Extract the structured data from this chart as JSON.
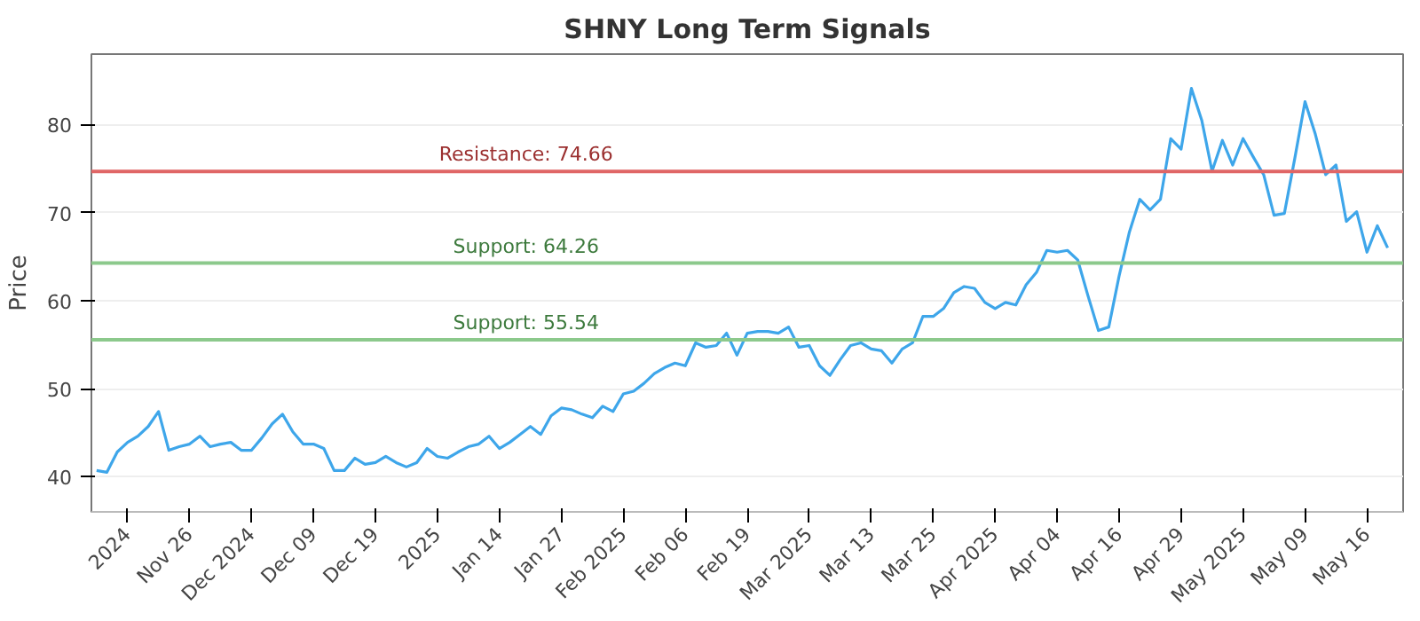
{
  "chart_data": {
    "type": "line",
    "title": "SHNY Long Term Signals",
    "ylabel": "Price",
    "categories": [
      null,
      null,
      null,
      "2024",
      null,
      null,
      null,
      null,
      null,
      "Nov 26",
      null,
      null,
      null,
      null,
      null,
      "Dec 2024",
      null,
      null,
      null,
      null,
      null,
      "Dec 09",
      null,
      null,
      null,
      null,
      null,
      "Dec 19",
      null,
      null,
      null,
      null,
      null,
      "2025",
      null,
      null,
      null,
      null,
      null,
      "Jan 14",
      null,
      null,
      null,
      null,
      null,
      "Jan 27",
      null,
      null,
      null,
      null,
      null,
      "Feb 2025",
      null,
      null,
      null,
      null,
      null,
      "Feb 06",
      null,
      null,
      null,
      null,
      null,
      "Feb 19",
      null,
      null,
      null,
      null,
      null,
      "Mar 2025",
      null,
      null,
      null,
      null,
      null,
      "Mar 13",
      null,
      null,
      null,
      null,
      null,
      "Mar 25",
      null,
      null,
      null,
      null,
      null,
      "Apr 2025",
      null,
      null,
      null,
      null,
      null,
      "Apr 04",
      null,
      null,
      null,
      null,
      null,
      "Apr 16",
      null,
      null,
      null,
      null,
      null,
      "Apr 29",
      null,
      null,
      null,
      null,
      null,
      "May 2025",
      null,
      null,
      null,
      null,
      null,
      "May 09",
      null,
      null,
      null,
      null,
      null,
      "May 16",
      null,
      null
    ],
    "series": [
      {
        "color": "#3ea6ea",
        "values": [
          40.7,
          40.5,
          42.8,
          43.9,
          44.6,
          45.7,
          47.4,
          43.0,
          43.4,
          43.7,
          44.6,
          43.4,
          43.7,
          43.9,
          43.0,
          43.0,
          44.4,
          46.0,
          47.1,
          45.1,
          43.7,
          43.7,
          43.2,
          40.7,
          40.7,
          42.1,
          41.4,
          41.6,
          42.3,
          41.6,
          41.1,
          41.6,
          43.2,
          42.3,
          42.1,
          42.8,
          43.4,
          43.7,
          44.6,
          43.2,
          43.9,
          44.8,
          45.7,
          44.8,
          46.9,
          47.8,
          47.6,
          47.1,
          46.7,
          48.0,
          47.4,
          49.4,
          49.7,
          50.6,
          51.7,
          52.4,
          52.9,
          52.6,
          55.2,
          54.7,
          54.9,
          56.3,
          53.8,
          56.3,
          56.5,
          56.5,
          56.3,
          57.0,
          54.7,
          54.9,
          52.6,
          51.5,
          53.3,
          54.9,
          55.2,
          54.5,
          54.3,
          52.9,
          54.5,
          55.2,
          58.2,
          58.2,
          59.1,
          60.9,
          61.6,
          61.4,
          59.8,
          59.1,
          59.8,
          59.5,
          61.8,
          63.2,
          65.7,
          65.5,
          65.7,
          64.6,
          60.5,
          56.6,
          57.0,
          62.8,
          67.8,
          71.5,
          70.3,
          71.5,
          78.4,
          77.2,
          84.1,
          80.5,
          74.7,
          78.2,
          75.4,
          78.4,
          76.3,
          74.3,
          69.7,
          69.9,
          76.1,
          82.6,
          78.9,
          74.3,
          75.4,
          69.0,
          70.1,
          65.5,
          68.5,
          66.0
        ]
      }
    ],
    "ylim": [
      36,
      88
    ],
    "yticks": [
      40,
      50,
      60,
      70,
      80
    ],
    "grid": "y",
    "ref_lines": [
      {
        "axis": "y",
        "value": 74.66,
        "label": "Resistance: 74.66",
        "color": "#e06666"
      },
      {
        "axis": "y",
        "value": 64.26,
        "label": "Support: 64.26",
        "color": "#8cc98c"
      },
      {
        "axis": "y",
        "value": 55.54,
        "label": "Support: 55.54",
        "color": "#8cc98c"
      }
    ]
  }
}
